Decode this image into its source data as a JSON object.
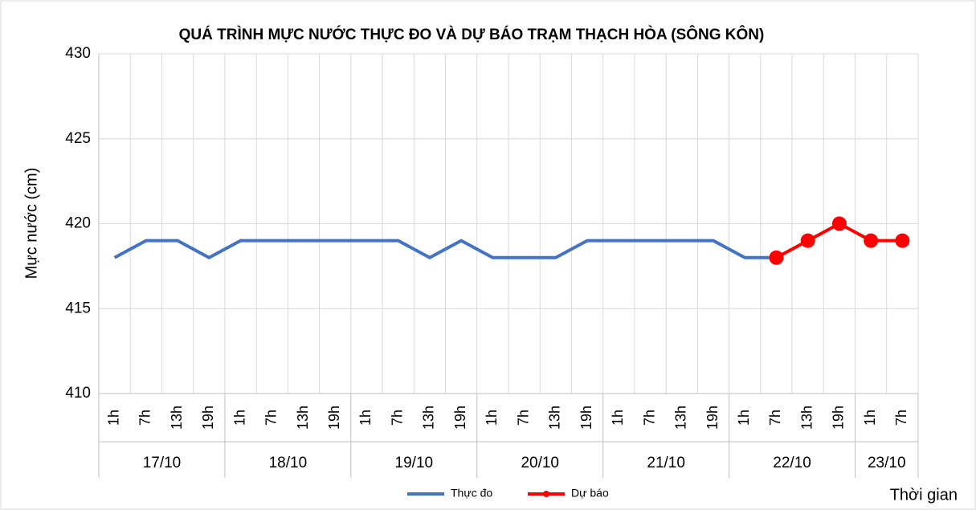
{
  "chart_data": {
    "type": "line",
    "title": "QUÁ TRÌNH MỰC NƯỚC THỰC ĐO VÀ DỰ BÁO TRẠM THẠCH HÒA (SÔNG KÔN)",
    "y_label": "Mực nước (cm)",
    "x_label": "Thời gian",
    "date_groups": [
      {
        "label": "17/10",
        "categories": [
          "1h",
          "7h",
          "13h",
          "19h"
        ]
      },
      {
        "label": "18/10",
        "categories": [
          "1h",
          "7h",
          "13h",
          "19h"
        ]
      },
      {
        "label": "19/10",
        "categories": [
          "1h",
          "7h",
          "13h",
          "19h"
        ]
      },
      {
        "label": "20/10",
        "categories": [
          "1h",
          "7h",
          "13h",
          "19h"
        ]
      },
      {
        "label": "21/10",
        "categories": [
          "1h",
          "7h",
          "13h",
          "19h"
        ]
      },
      {
        "label": "22/10",
        "categories": [
          "1h",
          "7h",
          "13h",
          "19h"
        ]
      },
      {
        "label": "23/10",
        "categories": [
          "1h",
          "7h"
        ]
      }
    ],
    "series": [
      {
        "name": "Thực đo",
        "color": "#4472c4",
        "markers": false,
        "values": [
          418,
          419,
          419,
          418,
          419,
          419,
          419,
          419,
          419,
          419,
          418,
          419,
          418,
          418,
          418,
          419,
          419,
          419,
          419,
          419,
          418,
          418,
          null,
          null,
          null,
          null
        ]
      },
      {
        "name": "Dự báo",
        "color": "#ff0000",
        "markers": true,
        "values": [
          null,
          null,
          null,
          null,
          null,
          null,
          null,
          null,
          null,
          null,
          null,
          null,
          null,
          null,
          null,
          null,
          null,
          null,
          null,
          null,
          null,
          418,
          419,
          420,
          419,
          419
        ]
      }
    ],
    "ylim": [
      410,
      430
    ],
    "yticks": [
      410,
      415,
      420,
      425,
      430
    ],
    "grid": true,
    "legend": "bottom"
  }
}
